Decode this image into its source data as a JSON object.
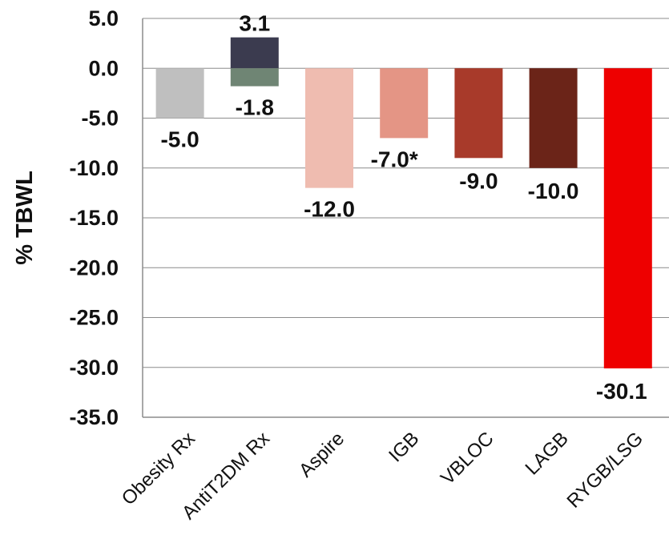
{
  "chart_data": {
    "type": "bar",
    "categories": [
      "Obesity Rx",
      "AntiT2DM Rx",
      "Aspire",
      "IGB",
      "VBLOC",
      "LAGB",
      "RYGB/LSG"
    ],
    "ylabel": "% TBWL",
    "xlabel": "",
    "ylim": [
      -35.0,
      5.0
    ],
    "yticks": [
      "5.0",
      "0.0",
      "-5.0",
      "-10.0",
      "-15.0",
      "-20.0",
      "-25.0",
      "-30.0",
      "-35.0"
    ],
    "grid": true,
    "bars": [
      {
        "category": "Obesity Rx",
        "segments": [
          {
            "value": -5.0,
            "label": "-5.0",
            "color": "#bfbfbf"
          }
        ]
      },
      {
        "category": "AntiT2DM Rx",
        "segments": [
          {
            "value": 3.1,
            "label": "3.1",
            "color": "#3b3b4f"
          },
          {
            "value": -1.8,
            "label": "-1.8",
            "color": "#6f8574"
          }
        ]
      },
      {
        "category": "Aspire",
        "segments": [
          {
            "value": -12.0,
            "label": "-12.0",
            "color": "#efbcb0"
          }
        ]
      },
      {
        "category": "IGB",
        "segments": [
          {
            "value": -7.0,
            "label": "-7.0*",
            "color": "#e49585"
          }
        ]
      },
      {
        "category": "VBLOC",
        "segments": [
          {
            "value": -9.0,
            "label": "-9.0",
            "color": "#a83a2a"
          }
        ]
      },
      {
        "category": "LAGB",
        "segments": [
          {
            "value": -10.0,
            "label": "-10.0",
            "color": "#6b2418"
          }
        ]
      },
      {
        "category": "RYGB/LSG",
        "segments": [
          {
            "value": -30.1,
            "label": "-30.1",
            "color": "#ee0000"
          }
        ]
      }
    ]
  }
}
